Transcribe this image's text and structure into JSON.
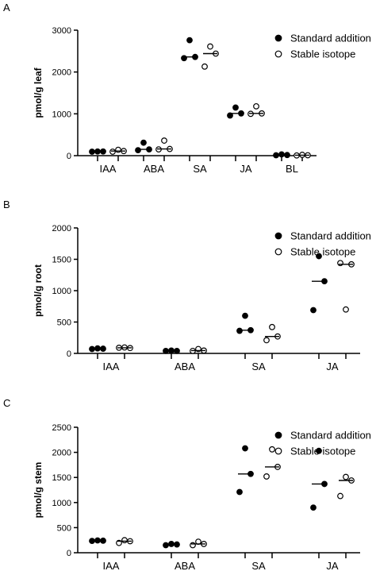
{
  "colors": {
    "marker_fill": "#000000",
    "marker_open_fill": "#ffffff",
    "axis": "#000000"
  },
  "chart_data": [
    {
      "type": "scatter",
      "panel": "A",
      "ylabel": "pmol/g leaf",
      "xlabel": "",
      "ylim": [
        0,
        3000
      ],
      "yticks": [
        0,
        1000,
        2000,
        3000
      ],
      "categories": [
        "IAA",
        "ABA",
        "SA",
        "JA",
        "BL"
      ],
      "legend_position": "top-right",
      "series": [
        {
          "name": "Standard addition",
          "marker": "filled",
          "values": [
            [
              95,
              100,
              100
            ],
            [
              130,
              310,
              150
            ],
            [
              2330,
              2760,
              2360
            ],
            [
              960,
              1150,
              1010
            ],
            [
              10,
              30,
              15
            ]
          ],
          "median": [
            100,
            150,
            2360,
            1010,
            15
          ]
        },
        {
          "name": "Stable isotope",
          "marker": "open",
          "values": [
            [
              95,
              140,
              110
            ],
            [
              150,
              360,
              160
            ],
            [
              2130,
              2610,
              2440
            ],
            [
              1000,
              1180,
              1010
            ],
            [
              5,
              20,
              10
            ]
          ],
          "median": [
            110,
            160,
            2440,
            1010,
            10
          ]
        }
      ]
    },
    {
      "type": "scatter",
      "panel": "B",
      "ylabel": "pmol/g root",
      "xlabel": "",
      "ylim": [
        0,
        2000
      ],
      "yticks": [
        0,
        500,
        1000,
        1500,
        2000
      ],
      "categories": [
        "IAA",
        "ABA",
        "SA",
        "JA"
      ],
      "legend_position": "top-right",
      "series": [
        {
          "name": "Standard addition",
          "marker": "filled",
          "values": [
            [
              70,
              80,
              75
            ],
            [
              40,
              45,
              40
            ],
            [
              360,
              600,
              370
            ],
            [
              690,
              1550,
              1150
            ]
          ],
          "median": [
            75,
            40,
            370,
            1150
          ]
        },
        {
          "name": "Stable isotope",
          "marker": "open",
          "values": [
            [
              90,
              95,
              85
            ],
            [
              40,
              70,
              45
            ],
            [
              210,
              420,
              270
            ],
            [
              1440,
              700,
              1420
            ]
          ],
          "median": [
            90,
            45,
            270,
            1420
          ]
        }
      ]
    },
    {
      "type": "scatter",
      "panel": "C",
      "ylabel": "pmol/g stem",
      "xlabel": "",
      "ylim": [
        0,
        2500
      ],
      "yticks": [
        0,
        500,
        1000,
        1500,
        2000,
        2500
      ],
      "categories": [
        "IAA",
        "ABA",
        "SA",
        "JA"
      ],
      "legend_position": "top-right",
      "series": [
        {
          "name": "Standard addition",
          "marker": "filled",
          "values": [
            [
              235,
              245,
              240
            ],
            [
              150,
              175,
              165
            ],
            [
              1210,
              2080,
              1570
            ],
            [
              900,
              2030,
              1370
            ]
          ],
          "median": [
            240,
            165,
            1570,
            1370
          ]
        },
        {
          "name": "Stable isotope",
          "marker": "open",
          "values": [
            [
              195,
              250,
              230
            ],
            [
              150,
              220,
              175
            ],
            [
              1520,
              2060,
              1710
            ],
            [
              1130,
              1510,
              1440
            ]
          ],
          "median": [
            230,
            175,
            1710,
            1440
          ]
        }
      ]
    }
  ]
}
